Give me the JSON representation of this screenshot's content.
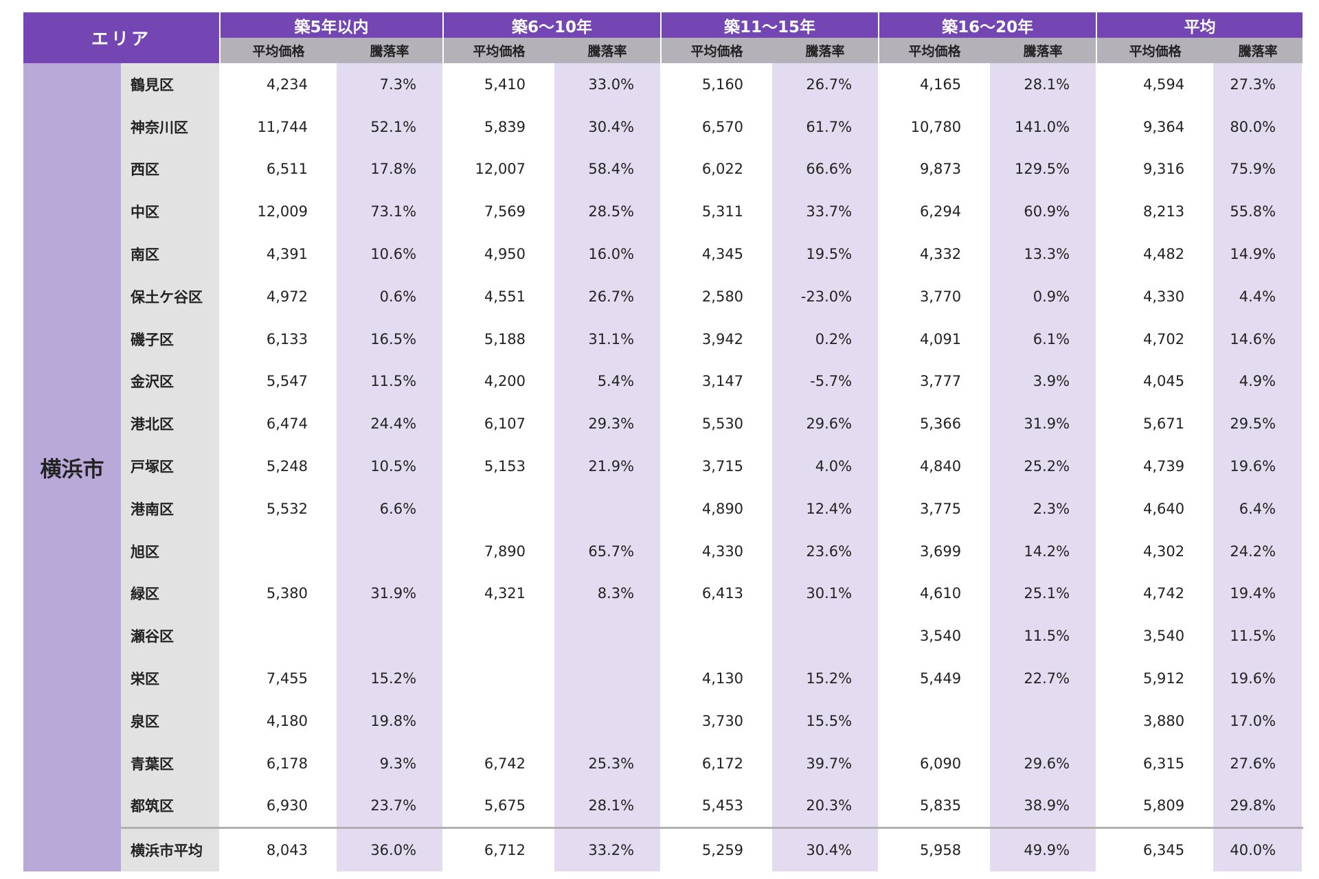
{
  "header": {
    "area_label": "エリア",
    "groups": [
      "築5年以内",
      "築6～10年",
      "築11～15年",
      "築16～20年",
      "平均"
    ],
    "sub_avg": "平均価格",
    "sub_rate": "騰落率"
  },
  "city": "横浜市",
  "rows": [
    {
      "ward": "鶴見区",
      "cells": [
        "4,234",
        "7.3%",
        "5,410",
        "33.0%",
        "5,160",
        "26.7%",
        "4,165",
        "28.1%",
        "4,594",
        "27.3%"
      ]
    },
    {
      "ward": "神奈川区",
      "cells": [
        "11,744",
        "52.1%",
        "5,839",
        "30.4%",
        "6,570",
        "61.7%",
        "10,780",
        "141.0%",
        "9,364",
        "80.0%"
      ]
    },
    {
      "ward": "西区",
      "cells": [
        "6,511",
        "17.8%",
        "12,007",
        "58.4%",
        "6,022",
        "66.6%",
        "9,873",
        "129.5%",
        "9,316",
        "75.9%"
      ]
    },
    {
      "ward": "中区",
      "cells": [
        "12,009",
        "73.1%",
        "7,569",
        "28.5%",
        "5,311",
        "33.7%",
        "6,294",
        "60.9%",
        "8,213",
        "55.8%"
      ]
    },
    {
      "ward": "南区",
      "cells": [
        "4,391",
        "10.6%",
        "4,950",
        "16.0%",
        "4,345",
        "19.5%",
        "4,332",
        "13.3%",
        "4,482",
        "14.9%"
      ]
    },
    {
      "ward": "保土ケ谷区",
      "cells": [
        "4,972",
        "0.6%",
        "4,551",
        "26.7%",
        "2,580",
        "-23.0%",
        "3,770",
        "0.9%",
        "4,330",
        "4.4%"
      ]
    },
    {
      "ward": "磯子区",
      "cells": [
        "6,133",
        "16.5%",
        "5,188",
        "31.1%",
        "3,942",
        "0.2%",
        "4,091",
        "6.1%",
        "4,702",
        "14.6%"
      ]
    },
    {
      "ward": "金沢区",
      "cells": [
        "5,547",
        "11.5%",
        "4,200",
        "5.4%",
        "3,147",
        "-5.7%",
        "3,777",
        "3.9%",
        "4,045",
        "4.9%"
      ]
    },
    {
      "ward": "港北区",
      "cells": [
        "6,474",
        "24.4%",
        "6,107",
        "29.3%",
        "5,530",
        "29.6%",
        "5,366",
        "31.9%",
        "5,671",
        "29.5%"
      ]
    },
    {
      "ward": "戸塚区",
      "cells": [
        "5,248",
        "10.5%",
        "5,153",
        "21.9%",
        "3,715",
        "4.0%",
        "4,840",
        "25.2%",
        "4,739",
        "19.6%"
      ]
    },
    {
      "ward": "港南区",
      "cells": [
        "5,532",
        "6.6%",
        "",
        "",
        "4,890",
        "12.4%",
        "3,775",
        "2.3%",
        "4,640",
        "6.4%"
      ]
    },
    {
      "ward": "旭区",
      "cells": [
        "",
        "",
        "7,890",
        "65.7%",
        "4,330",
        "23.6%",
        "3,699",
        "14.2%",
        "4,302",
        "24.2%"
      ]
    },
    {
      "ward": "緑区",
      "cells": [
        "5,380",
        "31.9%",
        "4,321",
        "8.3%",
        "6,413",
        "30.1%",
        "4,610",
        "25.1%",
        "4,742",
        "19.4%"
      ]
    },
    {
      "ward": "瀬谷区",
      "cells": [
        "",
        "",
        "",
        "",
        "",
        "",
        "3,540",
        "11.5%",
        "3,540",
        "11.5%"
      ]
    },
    {
      "ward": "栄区",
      "cells": [
        "7,455",
        "15.2%",
        "",
        "",
        "4,130",
        "15.2%",
        "5,449",
        "22.7%",
        "5,912",
        "19.6%"
      ]
    },
    {
      "ward": "泉区",
      "cells": [
        "4,180",
        "19.8%",
        "",
        "",
        "3,730",
        "15.5%",
        "",
        "",
        "3,880",
        "17.0%"
      ]
    },
    {
      "ward": "青葉区",
      "cells": [
        "6,178",
        "9.3%",
        "6,742",
        "25.3%",
        "6,172",
        "39.7%",
        "6,090",
        "29.6%",
        "6,315",
        "27.6%"
      ]
    },
    {
      "ward": "都筑区",
      "cells": [
        "6,930",
        "23.7%",
        "5,675",
        "28.1%",
        "5,453",
        "20.3%",
        "5,835",
        "38.9%",
        "5,809",
        "29.8%"
      ]
    }
  ],
  "total": {
    "ward": "横浜市平均",
    "cells": [
      "8,043",
      "36.0%",
      "6,712",
      "33.2%",
      "5,259",
      "30.4%",
      "5,958",
      "49.9%",
      "6,345",
      "40.0%"
    ]
  }
}
